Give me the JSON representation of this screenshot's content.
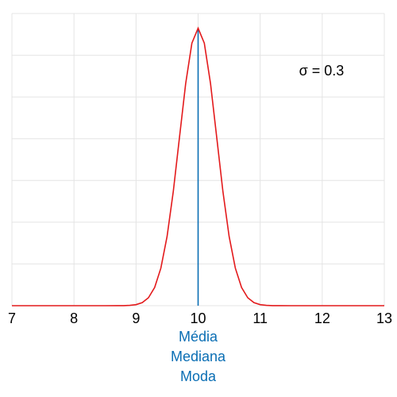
{
  "chart_data": {
    "type": "line",
    "x": [
      7,
      8,
      8.5,
      8.7,
      8.8,
      8.9,
      9.0,
      9.1,
      9.2,
      9.3,
      9.4,
      9.5,
      9.6,
      9.7,
      9.8,
      9.9,
      10.0,
      10.1,
      10.2,
      10.3,
      10.4,
      10.5,
      10.6,
      10.7,
      10.8,
      10.9,
      11.0,
      11.1,
      11.2,
      11.3,
      11.5,
      12,
      13
    ],
    "series": [
      {
        "color": "#e31a1c",
        "values": [
          0,
          0,
          0,
          0.0001,
          0.0004,
          0.0016,
          0.0051,
          0.0148,
          0.038,
          0.0874,
          0.18,
          0.3317,
          0.5467,
          0.8066,
          1.0648,
          1.2579,
          1.3298,
          1.2579,
          1.0648,
          0.8066,
          0.5467,
          0.3317,
          0.18,
          0.0874,
          0.038,
          0.0148,
          0.0051,
          0.0016,
          0.0004,
          0.0001,
          0,
          0,
          0
        ]
      }
    ],
    "xlim": [
      7,
      13
    ],
    "xticks": [
      7,
      8,
      9,
      10,
      11,
      12,
      13
    ],
    "ylim": [
      0,
      1.4
    ],
    "yticks": [
      0,
      0.2,
      0.4,
      0.6,
      0.8,
      1.0,
      1.2,
      1.4
    ],
    "grid": true,
    "annotation": "σ = 0.3",
    "vline": {
      "x": 10,
      "color": "#0a6eb4",
      "labels": [
        "Média",
        "Mediana",
        "Moda"
      ]
    }
  }
}
